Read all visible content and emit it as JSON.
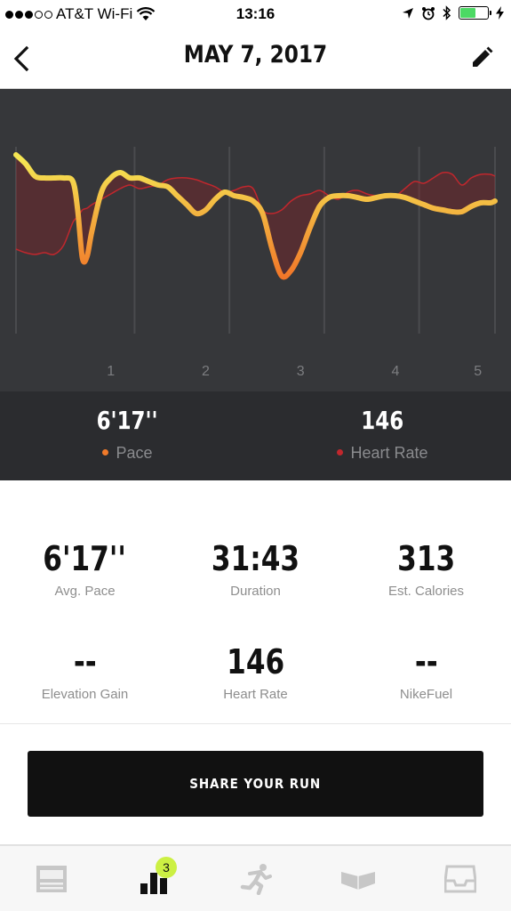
{
  "status_bar": {
    "carrier": "AT&T Wi-Fi",
    "time": "13:16",
    "signal_filled": 3,
    "signal_total": 5,
    "battery_level": 0.55,
    "battery_color": "#4cd964"
  },
  "nav": {
    "title": "MAY 7, 2017",
    "back_icon": "chevron-left-icon",
    "edit_icon": "pencil-icon"
  },
  "chart_data": {
    "type": "line",
    "x": [
      0.0,
      0.1,
      0.2,
      0.3,
      0.4,
      0.5,
      0.6,
      0.65,
      0.7,
      0.75,
      0.8,
      0.9,
      1.0,
      1.1,
      1.2,
      1.3,
      1.4,
      1.5,
      1.6,
      1.7,
      1.8,
      1.9,
      2.0,
      2.1,
      2.2,
      2.3,
      2.4,
      2.5,
      2.6,
      2.7,
      2.8,
      2.9,
      3.0,
      3.1,
      3.2,
      3.3,
      3.4,
      3.5,
      3.6,
      3.7,
      3.8,
      3.9,
      4.0,
      4.1,
      4.2,
      4.3,
      4.4,
      4.5,
      4.6,
      4.7,
      4.8,
      4.9,
      5.0,
      5.05
    ],
    "xticks": [
      "1",
      "2",
      "3",
      "4",
      "5"
    ],
    "xtick_values": [
      1,
      2,
      3,
      4,
      5
    ],
    "xlim": [
      0,
      5.05
    ],
    "grid": "vertical",
    "series": [
      {
        "name": "Pace",
        "color_start": "#f5e653",
        "color_end": "#f05a1e",
        "values": [
          0.93,
          0.88,
          0.81,
          0.8,
          0.8,
          0.8,
          0.78,
          0.62,
          0.35,
          0.36,
          0.5,
          0.72,
          0.8,
          0.83,
          0.8,
          0.8,
          0.78,
          0.76,
          0.75,
          0.7,
          0.65,
          0.6,
          0.62,
          0.68,
          0.72,
          0.7,
          0.69,
          0.67,
          0.6,
          0.4,
          0.25,
          0.28,
          0.38,
          0.52,
          0.64,
          0.69,
          0.7,
          0.7,
          0.69,
          0.68,
          0.69,
          0.7,
          0.7,
          0.69,
          0.67,
          0.65,
          0.63,
          0.62,
          0.61,
          0.61,
          0.64,
          0.66,
          0.66,
          0.67
        ]
      },
      {
        "name": "Heart Rate",
        "color": "#c1272d",
        "values": [
          0.4,
          0.38,
          0.37,
          0.38,
          0.37,
          0.42,
          0.55,
          0.58,
          0.62,
          0.63,
          0.65,
          0.68,
          0.71,
          0.74,
          0.76,
          0.74,
          0.75,
          0.76,
          0.79,
          0.8,
          0.8,
          0.79,
          0.77,
          0.75,
          0.72,
          0.73,
          0.75,
          0.74,
          0.62,
          0.6,
          0.62,
          0.67,
          0.7,
          0.71,
          0.73,
          0.7,
          0.68,
          0.72,
          0.73,
          0.71,
          0.7,
          0.71,
          0.7,
          0.74,
          0.78,
          0.77,
          0.8,
          0.83,
          0.82,
          0.76,
          0.8,
          0.82,
          0.82,
          0.81
        ]
      }
    ]
  },
  "legend": {
    "pace_value": "6'17''",
    "pace_label": "Pace",
    "pace_dot_color": "#f07a2a",
    "hr_value": "146",
    "hr_label": "Heart Rate",
    "hr_dot_color": "#c1272d"
  },
  "stats": [
    {
      "value": "6'17''",
      "label": "Avg. Pace"
    },
    {
      "value": "31:43",
      "label": "Duration"
    },
    {
      "value": "313",
      "label": "Est. Calories"
    },
    {
      "value": "--",
      "label": "Elevation Gain"
    },
    {
      "value": "146",
      "label": "Heart Rate"
    },
    {
      "value": "--",
      "label": "NikeFuel"
    }
  ],
  "share": {
    "label": "SHARE YOUR RUN"
  },
  "tabs": [
    {
      "icon": "feed-icon",
      "active": false
    },
    {
      "icon": "activity-icon",
      "active": true,
      "badge": "3"
    },
    {
      "icon": "runner-icon",
      "active": false
    },
    {
      "icon": "coach-icon",
      "active": false
    },
    {
      "icon": "inbox-icon",
      "active": false
    }
  ]
}
